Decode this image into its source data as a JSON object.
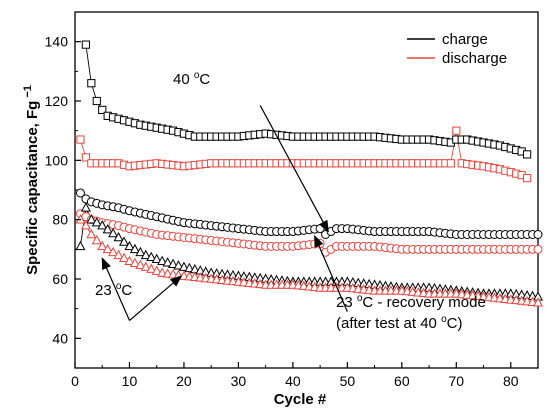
{
  "chart_data": {
    "type": "scatter",
    "xlabel": "Cycle #",
    "ylabel": "Specific capacitance, Fg",
    "ylabel_sup": "−1",
    "xlim": [
      0,
      85
    ],
    "ylim": [
      30,
      150
    ],
    "xticks": [
      "0",
      "10",
      "20",
      "30",
      "40",
      "50",
      "60",
      "70",
      "80"
    ],
    "yticks": [
      "40",
      "60",
      "80",
      "100",
      "120",
      "140"
    ],
    "legend": {
      "placement": "top-right",
      "entries": [
        {
          "label": "charge",
          "color": "#000000"
        },
        {
          "label": "discharge",
          "color": "#e8453c"
        }
      ]
    },
    "annotations": [
      {
        "text": "40 ",
        "sup": "o",
        "tail": "C"
      },
      {
        "text": "23 ",
        "sup": "o",
        "tail": "C"
      },
      {
        "text": "23 ",
        "sup": "o",
        "tail": "C - recovery mode"
      },
      {
        "text": "(after test at 40 ",
        "sup": "o",
        "tail": "C)"
      }
    ],
    "series": [
      {
        "condition": "40 °C",
        "mode": "charge",
        "marker": "square",
        "color": "#000000",
        "x": [
          2,
          3,
          4,
          5,
          6,
          8,
          10,
          12,
          15,
          18,
          20,
          22,
          25,
          30,
          35,
          40,
          45,
          50,
          55,
          60,
          65,
          69,
          70,
          72,
          75,
          78,
          80,
          82,
          83
        ],
        "y": [
          139,
          126,
          120,
          117,
          115,
          114,
          113,
          112,
          111,
          110,
          109,
          108,
          108,
          108,
          109,
          108,
          108,
          108,
          108,
          107,
          107,
          106,
          107,
          107,
          106,
          105,
          104,
          103,
          102
        ]
      },
      {
        "condition": "40 °C",
        "mode": "discharge",
        "marker": "square",
        "color": "#e8453c",
        "x": [
          1,
          2,
          3,
          5,
          8,
          10,
          15,
          20,
          25,
          30,
          35,
          40,
          45,
          50,
          55,
          60,
          65,
          69,
          70,
          71,
          75,
          78,
          80,
          82,
          83
        ],
        "y": [
          107,
          101,
          99,
          99,
          99,
          98,
          99,
          98,
          99,
          99,
          99,
          99,
          99,
          99,
          99,
          99,
          99,
          99,
          110,
          99,
          98,
          97,
          96,
          95,
          94
        ]
      },
      {
        "condition": "23 °C - recovery mode",
        "mode": "charge",
        "marker": "circle",
        "color": "#000000",
        "x": [
          1,
          2,
          3,
          5,
          8,
          10,
          15,
          20,
          25,
          30,
          35,
          40,
          45,
          46,
          48,
          50,
          55,
          60,
          65,
          70,
          75,
          80,
          85
        ],
        "y": [
          89,
          87,
          86,
          85,
          84,
          83,
          81,
          79,
          78,
          77,
          76,
          76,
          77,
          75,
          77,
          77,
          76,
          76,
          76,
          75,
          75,
          75,
          75
        ]
      },
      {
        "condition": "23 °C - recovery mode",
        "mode": "discharge",
        "marker": "circle",
        "color": "#e8453c",
        "x": [
          1,
          2,
          3,
          5,
          8,
          10,
          15,
          20,
          25,
          30,
          35,
          40,
          45,
          46,
          48,
          50,
          55,
          60,
          65,
          70,
          75,
          80,
          85
        ],
        "y": [
          82,
          81,
          80,
          79,
          78,
          77,
          75,
          74,
          73,
          72,
          71,
          71,
          72,
          69,
          71,
          71,
          71,
          70,
          70,
          70,
          70,
          70,
          70
        ]
      },
      {
        "condition": "23 °C",
        "mode": "charge",
        "marker": "triangle",
        "color": "#000000",
        "x": [
          1,
          2,
          3,
          5,
          8,
          10,
          13,
          16,
          20,
          25,
          30,
          35,
          40,
          45,
          50,
          55,
          60,
          65,
          70,
          75,
          80,
          85
        ],
        "y": [
          71,
          84,
          80,
          78,
          74,
          71,
          68,
          66,
          64,
          62,
          61,
          60,
          59,
          59,
          59,
          58,
          57,
          57,
          56,
          55,
          55,
          54
        ]
      },
      {
        "condition": "23 °C",
        "mode": "discharge",
        "marker": "triangle",
        "color": "#e8453c",
        "x": [
          1,
          2,
          3,
          5,
          8,
          10,
          13,
          16,
          20,
          25,
          30,
          35,
          40,
          45,
          50,
          55,
          60,
          65,
          70,
          75,
          80,
          85
        ],
        "y": [
          80,
          78,
          75,
          71,
          68,
          66,
          64,
          62,
          61,
          60,
          59,
          58,
          58,
          57,
          57,
          56,
          56,
          55,
          55,
          54,
          53,
          52
        ]
      }
    ]
  }
}
